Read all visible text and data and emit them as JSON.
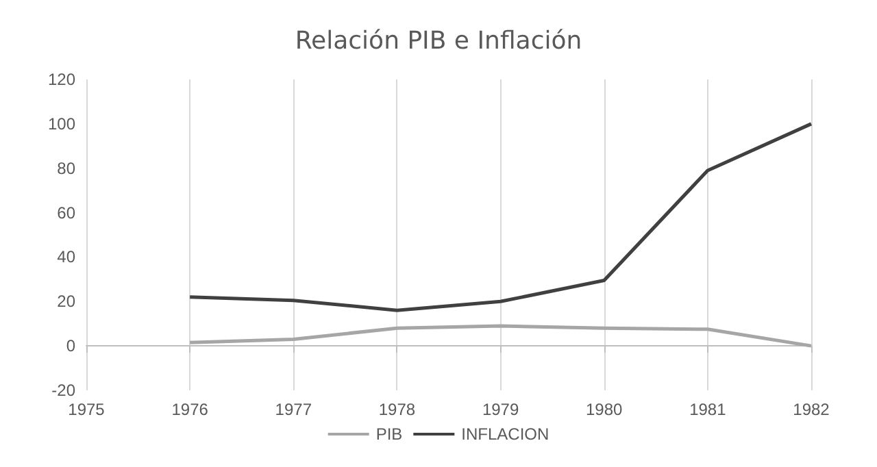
{
  "chart_data": {
    "type": "line",
    "title": "Relación PIB e Inflación",
    "x": [
      1976,
      1977,
      1978,
      1979,
      1980,
      1981,
      1982
    ],
    "series": [
      {
        "name": "PIB",
        "color": "#a6a6a6",
        "values": [
          1.5,
          3,
          8,
          9,
          8,
          7.5,
          0
        ]
      },
      {
        "name": "INFLACION",
        "color": "#404040",
        "values": [
          22,
          20.5,
          16,
          20,
          29.5,
          79,
          100
        ]
      }
    ],
    "xlim": [
      1975,
      1982
    ],
    "xticks": [
      1975,
      1976,
      1977,
      1978,
      1979,
      1980,
      1981,
      1982
    ],
    "ylim": [
      -20,
      120
    ],
    "yticks": [
      -20,
      0,
      20,
      40,
      60,
      80,
      100,
      120
    ],
    "grid": "x",
    "legend": "bottom",
    "marker": "none",
    "line_style": "solid"
  }
}
